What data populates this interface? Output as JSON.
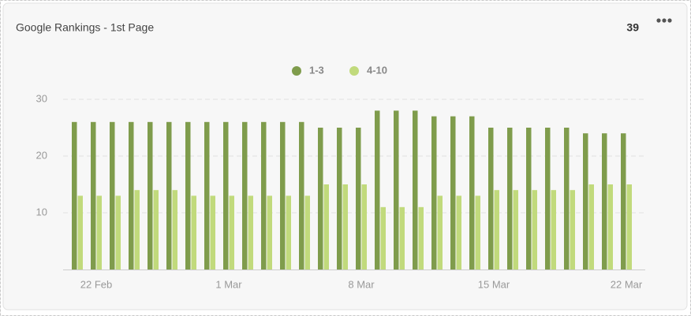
{
  "header": {
    "value": 39
  },
  "chart_data": {
    "type": "bar",
    "title": "Google Rankings - 1st Page",
    "categories": [
      null,
      "22 Feb",
      null,
      null,
      null,
      null,
      null,
      null,
      "1 Mar",
      null,
      null,
      null,
      null,
      null,
      null,
      "8 Mar",
      null,
      null,
      null,
      null,
      null,
      null,
      "15 Mar",
      null,
      null,
      null,
      null,
      null,
      null,
      "22 Mar"
    ],
    "series": [
      {
        "name": "1-3",
        "color": "#7f9c4c",
        "values": [
          26,
          26,
          26,
          26,
          26,
          26,
          26,
          26,
          26,
          26,
          26,
          26,
          26,
          25,
          25,
          25,
          28,
          28,
          28,
          27,
          27,
          27,
          25,
          25,
          25,
          25,
          25,
          24,
          24,
          24
        ]
      },
      {
        "name": "4-10",
        "color": "#c1da7c",
        "values": [
          13,
          13,
          13,
          14,
          14,
          14,
          13,
          13,
          13,
          13,
          13,
          13,
          13,
          15,
          15,
          15,
          11,
          11,
          11,
          13,
          13,
          13,
          14,
          14,
          14,
          14,
          14,
          15,
          15,
          15
        ]
      }
    ],
    "ylim": [
      0,
      30
    ],
    "yticks": [
      10,
      20,
      30
    ],
    "grid": true,
    "legend": "top"
  }
}
